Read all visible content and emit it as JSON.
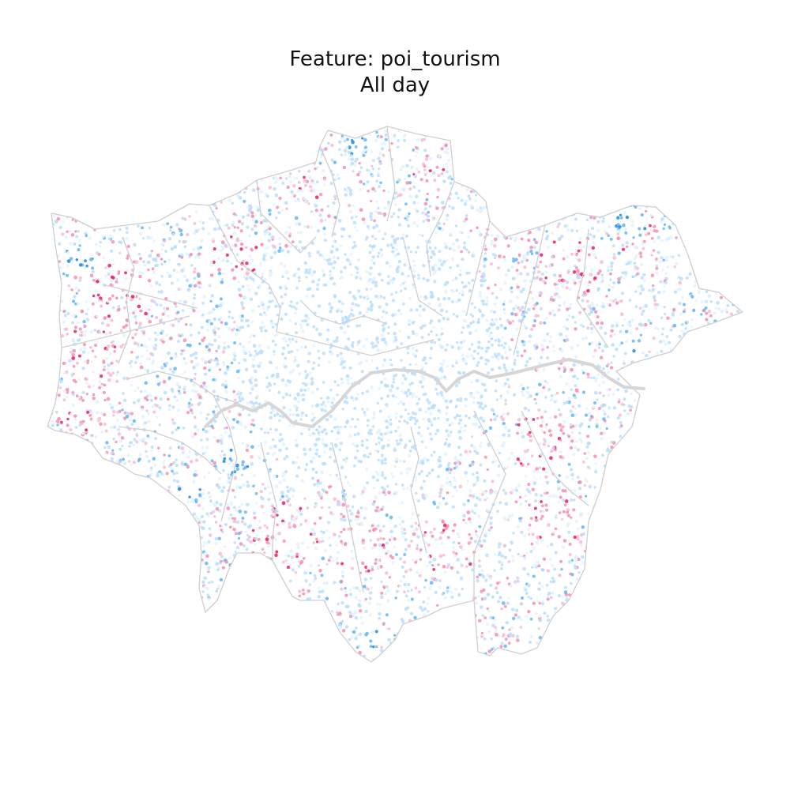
{
  "figure": {
    "title_line1": "Feature: poi_tourism",
    "title_line2": "All day"
  },
  "map": {
    "region": "Greater London",
    "layer": "borough-boundaries",
    "point_layer": "poi_tourism points",
    "colors": {
      "background": "#ffffff",
      "boundary": "#cfcfcf",
      "river": "#d6d6d6",
      "low_strong": "#1e88e5",
      "low": "#64b5f6",
      "low_light": "#bbdefb",
      "neutral": "#e3f2fd",
      "high_light": "#f8bbd0",
      "high": "#f48fb1",
      "high_strong": "#e91e63"
    }
  }
}
